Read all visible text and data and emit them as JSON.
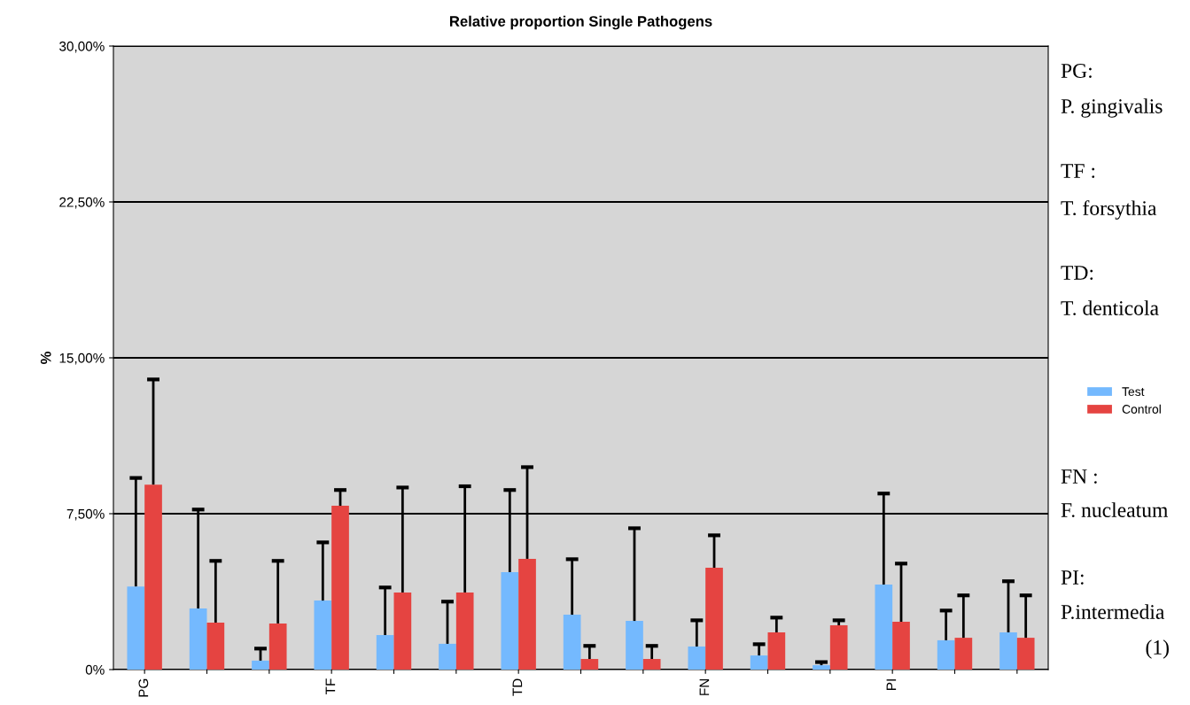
{
  "chart_data": {
    "type": "bar",
    "title": "Relative proportion Single Pathogens",
    "ylabel": "%",
    "categories": [
      "PG",
      null,
      null,
      "TF",
      null,
      null,
      "TD",
      null,
      null,
      "FN",
      null,
      null,
      "PI",
      null,
      null
    ],
    "series": [
      {
        "name": "Test",
        "color": "#74b9fe",
        "values": [
          4.0,
          2.94,
          0.43,
          3.32,
          1.66,
          1.24,
          4.69,
          2.64,
          2.34,
          1.11,
          0.68,
          0.21,
          4.09,
          1.41,
          1.79
        ],
        "errors": [
          [
            4.0,
            9.22
          ],
          [
            2.94,
            7.7
          ],
          [
            0.43,
            1.01
          ],
          [
            3.32,
            6.12
          ],
          [
            1.66,
            3.95
          ],
          [
            1.24,
            3.27
          ],
          [
            4.69,
            8.64
          ],
          [
            2.64,
            5.31
          ],
          [
            2.34,
            6.8
          ],
          [
            1.11,
            2.37
          ],
          [
            0.68,
            1.22
          ],
          [
            0.21,
            0.36
          ],
          [
            4.09,
            8.47
          ],
          [
            1.41,
            2.84
          ],
          [
            1.79,
            4.25
          ]
        ]
      },
      {
        "name": "Control",
        "color": "#e54441",
        "values": [
          8.9,
          2.26,
          2.22,
          7.88,
          3.71,
          3.71,
          5.33,
          0.51,
          0.51,
          4.9,
          1.79,
          2.13,
          2.3,
          1.53,
          1.53
        ],
        "errors": [
          [
            8.9,
            13.96
          ],
          [
            2.26,
            5.23
          ],
          [
            2.22,
            5.23
          ],
          [
            7.88,
            8.64
          ],
          [
            3.71,
            8.76
          ],
          [
            3.71,
            8.82
          ],
          [
            5.33,
            9.74
          ],
          [
            0.51,
            1.14
          ],
          [
            0.51,
            1.14
          ],
          [
            4.9,
            6.46
          ],
          [
            1.79,
            2.5
          ],
          [
            2.13,
            2.37
          ],
          [
            2.3,
            5.1
          ],
          [
            1.53,
            3.57
          ],
          [
            1.53,
            3.57
          ]
        ]
      }
    ],
    "ylim": [
      0,
      30
    ],
    "yticks": [
      {
        "value": 0,
        "label": "0%"
      },
      {
        "value": 7.5,
        "label": "7,50%"
      },
      {
        "value": 15,
        "label": "15,00%"
      },
      {
        "value": 22.5,
        "label": "22,50%"
      },
      {
        "value": 30,
        "label": "30,00%"
      }
    ],
    "grid": "y",
    "legend": "right",
    "annotations": [
      "PG:",
      "P. gingivalis",
      "TF :",
      "T. forsythia",
      "TD:",
      "T. denticola",
      "FN :",
      "F. nucleatum",
      "PI:",
      "P.intermedia",
      "(1)"
    ]
  }
}
